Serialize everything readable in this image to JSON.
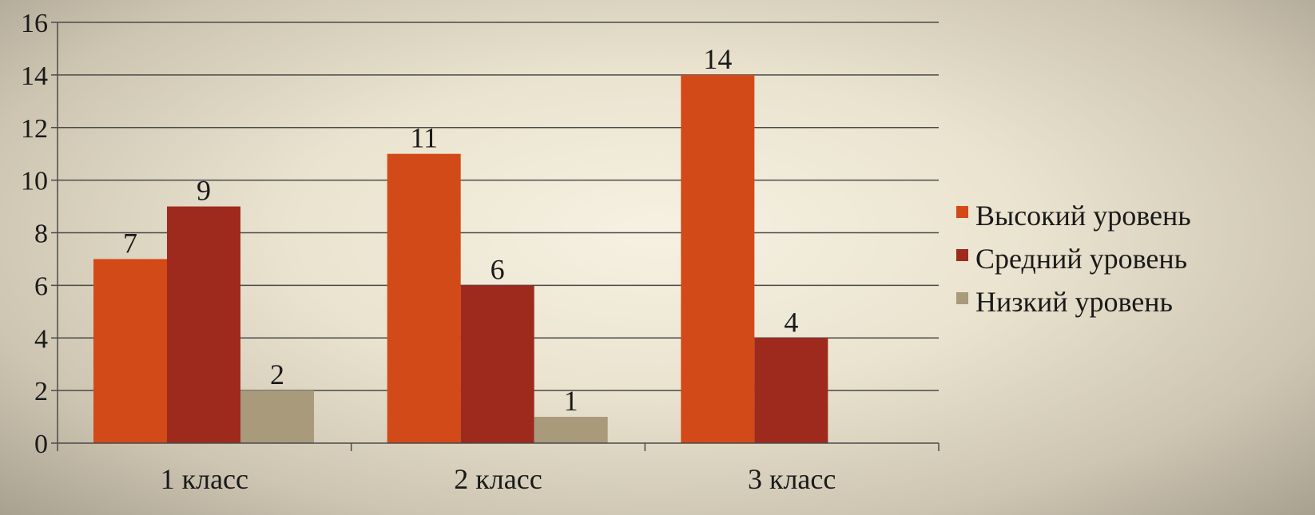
{
  "chart_data": {
    "type": "bar",
    "categories": [
      "1 класс",
      "2 класс",
      "3 класс"
    ],
    "series": [
      {
        "name": "Высокий уровень",
        "values": [
          7,
          11,
          14
        ],
        "color": "#d24a18"
      },
      {
        "name": "Средний уровень",
        "values": [
          9,
          6,
          4
        ],
        "color": "#9e2a1d"
      },
      {
        "name": "Низкий уровень",
        "values": [
          2,
          1,
          null
        ],
        "color": "#a89a7a"
      }
    ],
    "ylim": [
      0,
      16
    ],
    "yticks": [
      0,
      2,
      4,
      6,
      8,
      10,
      12,
      14,
      16
    ],
    "grid": true,
    "legend_position": "right",
    "data_labels": true
  }
}
